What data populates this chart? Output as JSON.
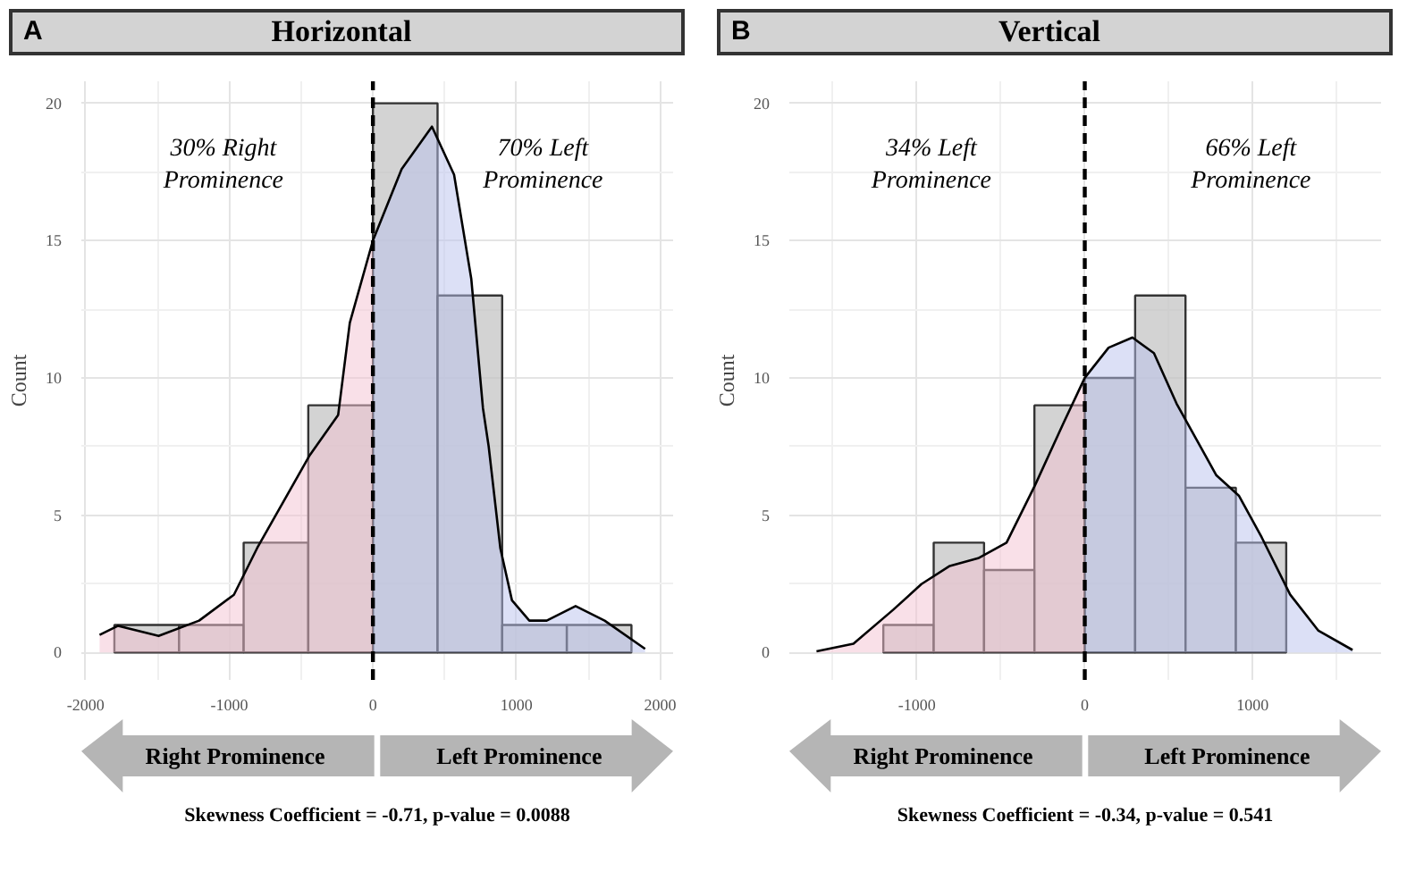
{
  "chart_data": [
    {
      "type": "histogram",
      "title": "Horizontal",
      "ylabel": "Count",
      "bins": [
        -1800,
        -1350,
        -900,
        -450,
        0,
        450,
        900,
        1350,
        1800
      ],
      "values": [
        1,
        1,
        4,
        9,
        20,
        13,
        1,
        1
      ],
      "color": "#c4c4c4",
      "series": [
        {
          "type": "area",
          "color": "#f4c2d2",
          "x": [
            -1903,
            -1774,
            -1492,
            -1210,
            -968,
            -806,
            -605,
            -444,
            -242,
            -161,
            0
          ],
          "values": [
            0.64,
            0.97,
            0.6,
            1.16,
            2.1,
            3.8,
            5.66,
            7.15,
            8.65,
            12.0,
            15.0
          ]
        },
        {
          "type": "area",
          "color": "#b9c2ee",
          "x": [
            0,
            200,
            411,
            565,
            685,
            766,
            806,
            887,
            968,
            1089,
            1210,
            1411,
            1613,
            1895
          ],
          "values": [
            15.0,
            17.6,
            19.15,
            17.4,
            13.6,
            8.9,
            7.5,
            3.8,
            1.9,
            1.16,
            1.16,
            1.69,
            1.16,
            0.13
          ]
        },
        {
          "type": "line",
          "color": "#000000",
          "x": [
            -1903,
            -1774,
            -1492,
            -1210,
            -968,
            -806,
            -605,
            -444,
            -242,
            -161,
            0,
            200,
            411,
            565,
            685,
            766,
            806,
            887,
            968,
            1089,
            1210,
            1411,
            1613,
            1895
          ],
          "values": [
            0.64,
            0.97,
            0.6,
            1.16,
            2.1,
            3.8,
            5.66,
            7.15,
            8.65,
            12.0,
            15.0,
            17.6,
            19.15,
            17.4,
            13.6,
            8.9,
            7.5,
            3.8,
            1.9,
            1.16,
            1.16,
            1.69,
            1.16,
            0.13
          ]
        }
      ],
      "ref_lines": [
        {
          "axis": "x",
          "value": 0,
          "line_style": "dashed",
          "color": "#000000"
        }
      ],
      "xlim": [
        -2030,
        2090
      ],
      "xticks": [
        -2000,
        -1000,
        0,
        1000,
        2000
      ],
      "ylim": [
        -1,
        20.8
      ],
      "yticks": [
        0,
        5,
        10,
        15,
        20
      ],
      "grid": true,
      "annotations": [
        "A",
        "30% Right\nProminence",
        "70% Left\nProminence",
        "Right Prominence",
        "Left Prominence",
        "Skewness Coefficient = -0.71, p-value = 0.0088"
      ]
    },
    {
      "type": "histogram",
      "title": "Vertical",
      "ylabel": "Count",
      "bins": [
        -1200,
        -900,
        -600,
        -300,
        0,
        300,
        600,
        900,
        1200
      ],
      "values": [
        1,
        4,
        3,
        9,
        10,
        13,
        6,
        4
      ],
      "color": "#c4c4c4",
      "series": [
        {
          "type": "area",
          "color": "#f4c2d2",
          "x": [
            -1598,
            -1378,
            -1142,
            -973,
            -804,
            -635,
            -466,
            -297,
            -128,
            0
          ],
          "values": [
            0.04,
            0.32,
            1.55,
            2.49,
            3.15,
            3.43,
            4.0,
            6.08,
            8.34,
            10.0
          ]
        },
        {
          "type": "area",
          "color": "#b9c2ee",
          "x": [
            0,
            142,
            284,
            412,
            547,
            784,
            919,
            1054,
            1223,
            1392,
            1595
          ],
          "values": [
            10.0,
            11.1,
            11.47,
            10.9,
            9.06,
            6.45,
            5.7,
            4.19,
            2.11,
            0.79,
            0.09
          ]
        },
        {
          "type": "line",
          "color": "#000000",
          "x": [
            -1598,
            -1378,
            -1142,
            -973,
            -804,
            -635,
            -466,
            -297,
            -128,
            0,
            142,
            284,
            412,
            547,
            784,
            919,
            1054,
            1223,
            1392,
            1595
          ],
          "values": [
            0.04,
            0.32,
            1.55,
            2.49,
            3.15,
            3.43,
            4.0,
            6.08,
            8.34,
            10.0,
            11.1,
            11.47,
            10.9,
            9.06,
            6.45,
            5.7,
            4.19,
            2.11,
            0.79,
            0.09
          ]
        }
      ],
      "ref_lines": [
        {
          "axis": "x",
          "value": 0,
          "line_style": "dashed",
          "color": "#000000"
        }
      ],
      "xlim": [
        -1760,
        1765
      ],
      "xticks": [
        -1000,
        0,
        1000
      ],
      "ylim": [
        -1,
        20.8
      ],
      "yticks": [
        0,
        5,
        10,
        15,
        20
      ],
      "grid": true,
      "annotations": [
        "B",
        "34% Left\nProminence",
        "66% Left\nProminence",
        "Right Prominence",
        "Left Prominence",
        "Skewness Coefficient = -0.34, p-value = 0.541"
      ]
    }
  ]
}
